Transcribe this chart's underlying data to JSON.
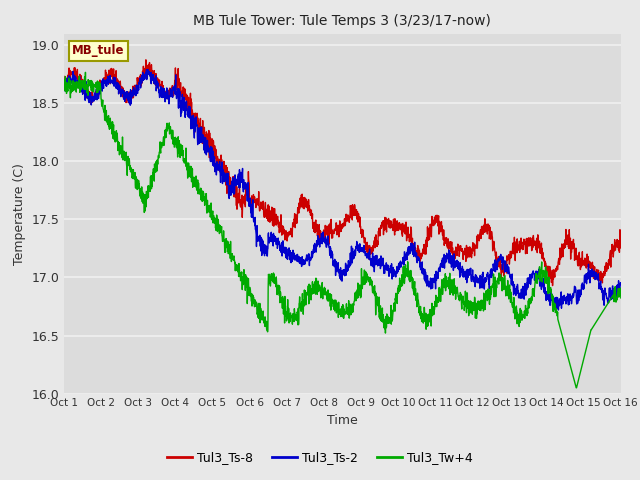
{
  "title": "MB Tule Tower: Tule Temps 3 (3/23/17-now)",
  "xlabel": "Time",
  "ylabel": "Temperature (C)",
  "ylim": [
    16.0,
    19.1
  ],
  "yticks": [
    16.0,
    16.5,
    17.0,
    17.5,
    18.0,
    18.5,
    19.0
  ],
  "xtick_labels": [
    "Oct 1",
    "Oct 2",
    "Oct 3",
    "Oct 4",
    "Oct 5",
    "Oct 6",
    "Oct 7",
    "Oct 8",
    "Oct 9",
    "Oct 10",
    "Oct 11",
    "Oct 12",
    "Oct 13",
    "Oct 14",
    "Oct 15",
    "Oct 16"
  ],
  "n_points": 2000,
  "outer_bg": "#e8e8e8",
  "plot_bg": "#dcdcdc",
  "grid_color": "#f0f0f0",
  "legend_label": "MB_tule",
  "series_colors": [
    "#cc0000",
    "#0000cc",
    "#00aa00"
  ],
  "series_labels": [
    "Tul3_Ts-8",
    "Tul3_Ts-2",
    "Tul3_Tw+4"
  ],
  "line_width": 1.0,
  "figsize": [
    6.4,
    4.8
  ],
  "dpi": 100
}
